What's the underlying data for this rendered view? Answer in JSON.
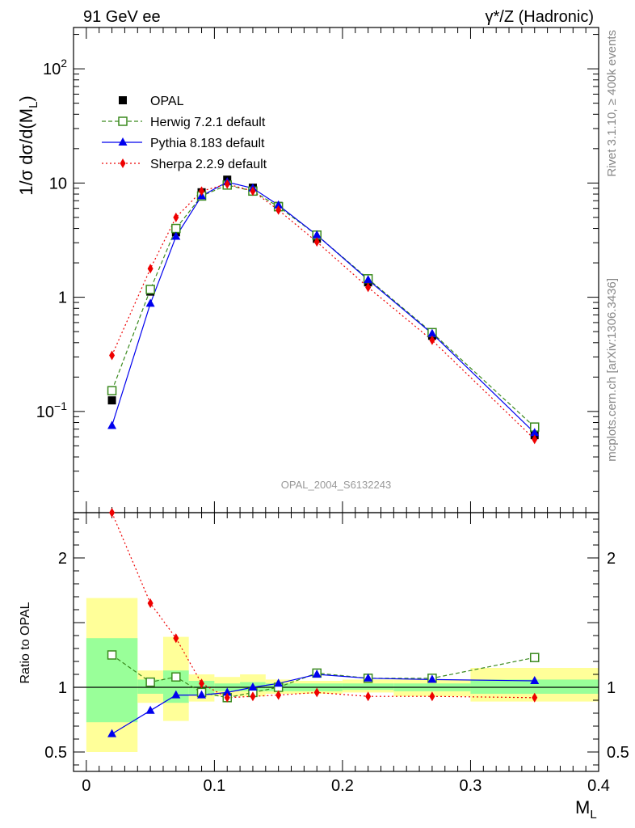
{
  "header": {
    "left": "91 GeV ee",
    "right_sym": "γ*/Z",
    "right_rest": "(Hadronic)"
  },
  "side_labels": {
    "rivet": "Rivet 3.1.10, ≥ 400k events",
    "mcplots": "mcplots.cern.ch [arXiv:1306.3436]"
  },
  "analysis_tag": "OPAL_2004_S6132243",
  "colors": {
    "opal": "#000000",
    "herwig": "#3a8a1e",
    "pythia": "#0000ee",
    "sherpa": "#ee0000",
    "band_yellow": "#ffff99",
    "band_green": "#99ff99"
  },
  "chart_data": [
    {
      "type": "scatter",
      "scale": "log",
      "ylabel_main": "1/σ dσ/d(M",
      "ylabel_sub": "L",
      "ylabel_close": ")",
      "yticks": [
        {
          "value": 0.1,
          "base": "10",
          "exp": "−1"
        },
        {
          "value": 1,
          "label": "1"
        },
        {
          "value": 10,
          "label": "10"
        },
        {
          "value": 100,
          "base": "10",
          "exp": "2"
        }
      ],
      "ylim": [
        0.013,
        230
      ],
      "xlim": [
        -0.01,
        0.4
      ],
      "x": [
        0.02,
        0.05,
        0.07,
        0.09,
        0.11,
        0.13,
        0.15,
        0.18,
        0.22,
        0.27,
        0.35
      ],
      "series": [
        {
          "name": "OPAL",
          "key": "opal",
          "marker": "square",
          "values": [
            0.125,
            1.12,
            3.7,
            8.3,
            10.7,
            9.1,
            6.3,
            3.25,
            1.35,
            0.46,
            0.062
          ]
        },
        {
          "name": "Herwig 7.2.1 default",
          "key": "herwig",
          "marker": "open-square",
          "line": "dashed",
          "values": [
            0.152,
            1.17,
            4.0,
            7.7,
            9.6,
            8.5,
            6.2,
            3.5,
            1.45,
            0.49,
            0.073
          ]
        },
        {
          "name": "Pythia 8.183 default",
          "key": "pythia",
          "marker": "triangle",
          "line": "solid",
          "values": [
            0.075,
            0.88,
            3.4,
            7.7,
            10.2,
            9.0,
            6.4,
            3.5,
            1.42,
            0.48,
            0.065
          ]
        },
        {
          "name": "Sherpa 2.2.9 default",
          "key": "sherpa",
          "marker": "diamond",
          "line": "dotted",
          "values": [
            0.31,
            1.78,
            5.0,
            8.5,
            9.8,
            8.5,
            5.8,
            3.05,
            1.22,
            0.42,
            0.057
          ]
        }
      ]
    },
    {
      "type": "line",
      "ylabel": "Ratio to OPAL",
      "xlabel_main": "M",
      "xlabel_sub": "L",
      "xticks": [
        "0",
        "0.1",
        "0.2",
        "0.3",
        "0.4"
      ],
      "xtick_values": [
        0,
        0.1,
        0.2,
        0.3,
        0.4
      ],
      "yticks": [
        "0.5",
        "1",
        "2"
      ],
      "ytick_values": [
        0.5,
        1,
        2
      ],
      "ylim": [
        0.35,
        2.35
      ],
      "xlim": [
        -0.01,
        0.4
      ],
      "bins": [
        {
          "lo": 0.0,
          "hi": 0.04,
          "y_lo": 0.5,
          "y_hi": 1.69,
          "g_lo": 0.73,
          "g_hi": 1.38
        },
        {
          "lo": 0.04,
          "hi": 0.06,
          "y_lo": 0.88,
          "y_hi": 1.13,
          "g_lo": 0.95,
          "g_hi": 1.06
        },
        {
          "lo": 0.06,
          "hi": 0.08,
          "y_lo": 0.74,
          "y_hi": 1.39,
          "g_lo": 0.88,
          "g_hi": 1.13
        },
        {
          "lo": 0.08,
          "hi": 0.1,
          "y_lo": 0.89,
          "y_hi": 1.1,
          "g_lo": 0.94,
          "g_hi": 1.05
        },
        {
          "lo": 0.1,
          "hi": 0.12,
          "y_lo": 0.93,
          "y_hi": 1.08,
          "g_lo": 0.97,
          "g_hi": 1.03
        },
        {
          "lo": 0.12,
          "hi": 0.14,
          "y_lo": 0.93,
          "y_hi": 1.1,
          "g_lo": 0.97,
          "g_hi": 1.04
        },
        {
          "lo": 0.14,
          "hi": 0.16,
          "y_lo": 0.95,
          "y_hi": 1.06,
          "g_lo": 0.97,
          "g_hi": 1.03
        },
        {
          "lo": 0.16,
          "hi": 0.2,
          "y_lo": 0.95,
          "y_hi": 1.05,
          "g_lo": 0.97,
          "g_hi": 1.03
        },
        {
          "lo": 0.2,
          "hi": 0.24,
          "y_lo": 0.96,
          "y_hi": 1.06,
          "g_lo": 0.98,
          "g_hi": 1.03
        },
        {
          "lo": 0.24,
          "hi": 0.3,
          "y_lo": 0.93,
          "y_hi": 1.06,
          "g_lo": 0.97,
          "g_hi": 1.03
        },
        {
          "lo": 0.3,
          "hi": 0.4,
          "y_lo": 0.89,
          "y_hi": 1.15,
          "g_lo": 0.95,
          "g_hi": 1.06
        }
      ],
      "series": [
        {
          "name": "Herwig 7.2.1 default",
          "key": "herwig",
          "marker": "open-square",
          "line": "dashed",
          "values": [
            1.25,
            1.04,
            1.08,
            0.96,
            0.92,
            0.96,
            1.0,
            1.11,
            1.07,
            1.07,
            1.23
          ]
        },
        {
          "name": "Pythia 8.183 default",
          "key": "pythia",
          "marker": "triangle",
          "line": "solid",
          "values": [
            0.64,
            0.82,
            0.94,
            0.94,
            0.96,
            1.0,
            1.03,
            1.1,
            1.07,
            1.06,
            1.05
          ]
        },
        {
          "name": "Sherpa 2.2.9 default",
          "key": "sherpa",
          "marker": "diamond",
          "line": "dotted",
          "values": [
            2.35,
            1.65,
            1.38,
            1.03,
            0.92,
            0.93,
            0.94,
            0.96,
            0.93,
            0.93,
            0.92
          ]
        }
      ]
    }
  ]
}
